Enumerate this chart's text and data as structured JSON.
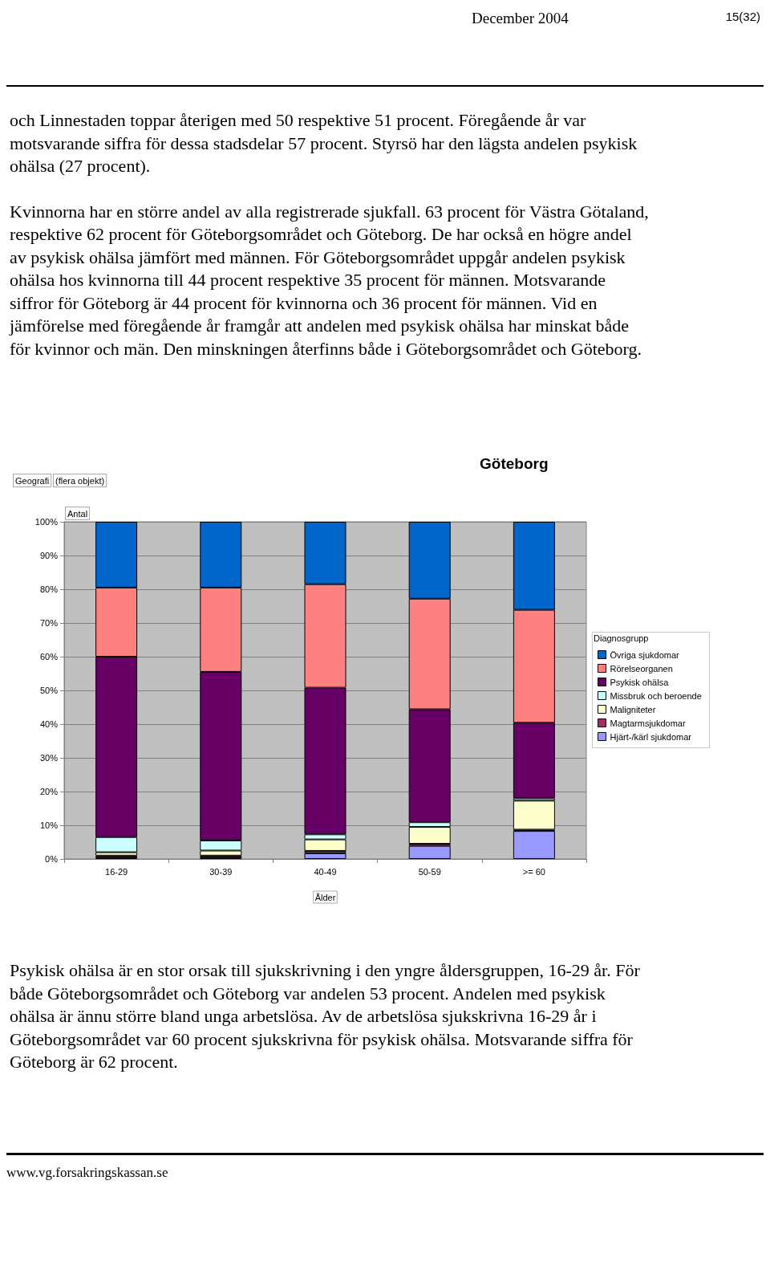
{
  "chart_data": {
    "type": "bar",
    "stacked": true,
    "title": "Göteborg",
    "xlabel": "Ålder",
    "legend_title": "Diagnosgrupp",
    "legend": "right",
    "grid": "y",
    "annotations": [
      "December 2004",
      "15(32)",
      "och Linnestaden toppar återigen med 50 respektive 51 procent. Föregående år var motsvarande siffra för dessa stadsdelar 57 procent. Styrsö har den lägsta andelen psykisk ohälsa (27 procent).",
      "Kvinnorna har en större andel av alla registrerade sjukfall. 63 procent för Västra Götaland, respektive 62 procent för Göteborgsområdet och Göteborg. De har också en högre andel av psykisk ohälsa jämfört med männen. För Göteborgsområdet uppgår andelen psykisk ohälsa hos kvinnorna till 44 procent respektive 35 procent för männen. Motsvarande siffror för Göteborg är 44 procent för kvinnorna och 36 procent för männen. Vid en jämförelse med föregående år framgår att andelen med psykisk ohälsa har minskat både för kvinnor och män. Den minskningen återfinns både i Göteborgsområdet och Göteborg.",
      "Geografi",
      "(flera objekt)",
      "Antal",
      "Psykisk ohälsa är en stor orsak till sjukskrivning i den yngre åldersgruppen, 16-29 år. För både Göteborgsområdet och Göteborg var andelen 53 procent. Andelen med psykisk ohälsa är ännu större bland unga arbetslösa. Av de arbetslösa sjukskrivna 16-29 år i Göteborgsområdet var 60 procent sjukskrivna för psykisk ohälsa. Motsvarande siffra för Göteborg är 62 procent.",
      "www.vg.forsakringskassan.se"
    ],
    "categories": [
      "16-29",
      "30-39",
      "40-49",
      "50-59",
      ">= 60"
    ],
    "ylim": [
      0,
      100
    ],
    "yticks": [
      {
        "value": 0,
        "label": "0%"
      },
      {
        "value": 10,
        "label": "10%"
      },
      {
        "value": 20,
        "label": "20%"
      },
      {
        "value": 30,
        "label": "30%"
      },
      {
        "value": 40,
        "label": "40%"
      },
      {
        "value": 50,
        "label": "50%"
      },
      {
        "value": 60,
        "label": "60%"
      },
      {
        "value": 70,
        "label": "70%"
      },
      {
        "value": 80,
        "label": "80%"
      },
      {
        "value": 90,
        "label": "90%"
      },
      {
        "value": 100,
        "label": "100%"
      }
    ],
    "series": [
      {
        "name": "Hjärt-/kärl sjukdomar",
        "color": "#9999ff",
        "values": [
          0.5,
          0.5,
          1.7,
          3.9,
          8.3
        ]
      },
      {
        "name": "Magtarmsjukdomar",
        "color": "#993366",
        "values": [
          0.5,
          0.5,
          0.7,
          0.6,
          0.4
        ]
      },
      {
        "name": "Maligniteter",
        "color": "#ffffcc",
        "values": [
          1,
          1.5,
          3.4,
          5,
          8.6
        ]
      },
      {
        "name": "Missbruk och beroende",
        "color": "#ccffff",
        "values": [
          4.5,
          3,
          1.5,
          1.4,
          0.7
        ]
      },
      {
        "name": "Psykisk ohälsa",
        "color": "#660066",
        "values": [
          53.5,
          50,
          43.5,
          33.5,
          22.4
        ]
      },
      {
        "name": "Rörelseorganen",
        "color": "#ff8080",
        "values": [
          20.5,
          25,
          30.7,
          32.8,
          33.5
        ]
      },
      {
        "name": "Övriga sjukdomar",
        "color": "#0066cc",
        "values": [
          19.5,
          19.5,
          18.5,
          22.8,
          26.1
        ]
      }
    ]
  }
}
